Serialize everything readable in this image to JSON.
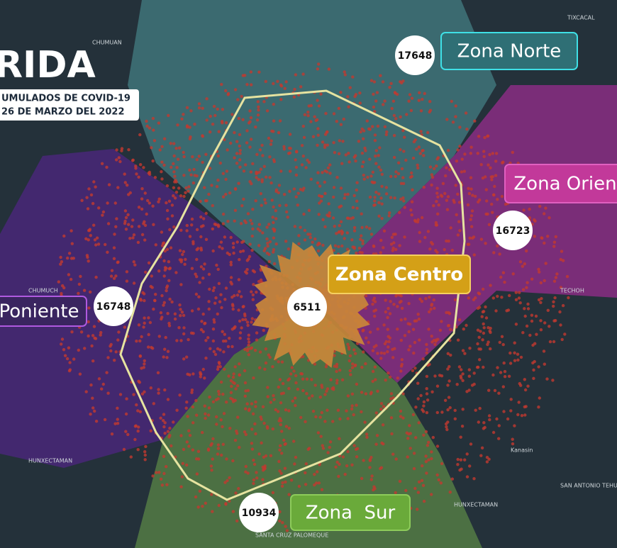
{
  "header": {
    "title": "RIDA",
    "subtitle_lines": [
      "UMULADOS DE COVID-19",
      "26 DE MARZO DEL 2022"
    ]
  },
  "zones": [
    {
      "label": "Zona Norte",
      "count": 17648
    },
    {
      "label": "Zona Orien",
      "count": 16723
    },
    {
      "label": "Poniente",
      "count": 16748
    },
    {
      "label": "Zona Centro",
      "count": 6511
    },
    {
      "label": "Zona  Sur",
      "count": 10934
    }
  ],
  "places": [
    "CHUMUAN",
    "CHUMUCH",
    "TECHOH",
    "HUNXECTAMAN",
    "HUNXECTAMAN",
    "TIXCACAL",
    "Kanasin",
    "SAN ANTONIO TEHUITZ",
    "SANTA CRUZ PALOMEQUE"
  ]
}
